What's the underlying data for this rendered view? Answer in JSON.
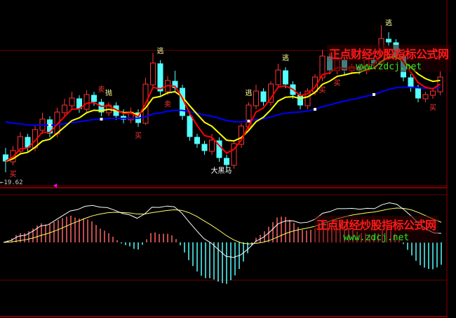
{
  "chart_data": {
    "type": "candlestick",
    "panels": [
      "price",
      "macd"
    ],
    "price": {
      "ohlc": [
        [
          20.1,
          20.3,
          19.6,
          19.92
        ],
        [
          19.9,
          20.35,
          19.8,
          20.22
        ],
        [
          20.2,
          20.75,
          20.1,
          20.62
        ],
        [
          20.6,
          20.7,
          20.2,
          20.32
        ],
        [
          20.3,
          20.95,
          20.2,
          20.82
        ],
        [
          20.8,
          21.3,
          20.7,
          21.12
        ],
        [
          21.1,
          21.2,
          20.6,
          20.72
        ],
        [
          20.7,
          21.45,
          20.6,
          21.32
        ],
        [
          21.3,
          21.7,
          21.2,
          21.52
        ],
        [
          21.5,
          21.9,
          21.4,
          21.72
        ],
        [
          21.7,
          21.8,
          21.3,
          21.42
        ],
        [
          21.4,
          21.95,
          21.3,
          21.82
        ],
        [
          21.8,
          21.9,
          21.5,
          21.62
        ],
        [
          21.6,
          21.7,
          21.2,
          21.32
        ],
        [
          21.3,
          21.6,
          21.2,
          21.52
        ],
        [
          21.5,
          21.6,
          21.1,
          21.22
        ],
        [
          21.2,
          21.4,
          21.0,
          21.12
        ],
        [
          21.1,
          21.45,
          21.0,
          21.32
        ],
        [
          21.3,
          21.4,
          20.9,
          21.02
        ],
        [
          21.0,
          22.3,
          20.95,
          22.12
        ],
        [
          22.1,
          23.0,
          22.0,
          22.72
        ],
        [
          22.7,
          22.8,
          21.8,
          21.92
        ],
        [
          21.9,
          22.35,
          21.8,
          22.22
        ],
        [
          22.2,
          22.5,
          21.9,
          22.02
        ],
        [
          22.0,
          22.1,
          21.1,
          21.22
        ],
        [
          21.2,
          21.3,
          20.5,
          20.62
        ],
        [
          20.6,
          20.7,
          20.3,
          20.42
        ],
        [
          20.4,
          20.5,
          20.1,
          20.22
        ],
        [
          20.2,
          20.7,
          20.1,
          20.52
        ],
        [
          20.5,
          20.6,
          19.9,
          20.02
        ],
        [
          20.0,
          20.1,
          19.62,
          19.82
        ],
        [
          19.8,
          20.5,
          19.7,
          20.42
        ],
        [
          20.4,
          21.0,
          20.3,
          20.92
        ],
        [
          20.9,
          21.6,
          20.8,
          21.52
        ],
        [
          21.5,
          22.1,
          21.4,
          21.92
        ],
        [
          21.9,
          22.0,
          21.5,
          21.62
        ],
        [
          21.6,
          22.2,
          21.5,
          22.12
        ],
        [
          22.1,
          22.7,
          22.0,
          22.52
        ],
        [
          22.5,
          22.6,
          22.0,
          22.12
        ],
        [
          22.1,
          22.2,
          21.7,
          21.82
        ],
        [
          21.8,
          21.9,
          21.4,
          21.52
        ],
        [
          21.5,
          22.0,
          21.4,
          21.92
        ],
        [
          21.9,
          22.4,
          21.8,
          22.32
        ],
        [
          22.3,
          23.1,
          22.2,
          22.92
        ],
        [
          22.9,
          23.0,
          22.4,
          22.52
        ],
        [
          22.5,
          22.9,
          22.4,
          22.82
        ],
        [
          22.8,
          22.9,
          22.4,
          22.52
        ],
        [
          22.5,
          22.7,
          22.4,
          22.62
        ],
        [
          22.6,
          22.7,
          22.4,
          22.52
        ],
        [
          22.5,
          22.9,
          22.4,
          22.82
        ],
        [
          22.8,
          22.9,
          22.6,
          22.72
        ],
        [
          22.7,
          23.8,
          22.6,
          23.42
        ],
        [
          23.4,
          23.6,
          23.2,
          23.32
        ],
        [
          23.3,
          23.4,
          22.8,
          22.92
        ],
        [
          22.9,
          23.0,
          22.2,
          22.32
        ],
        [
          22.3,
          22.4,
          21.9,
          22.02
        ],
        [
          22.0,
          22.1,
          21.6,
          21.72
        ],
        [
          21.7,
          21.9,
          21.6,
          21.82
        ],
        [
          21.8,
          22.0,
          21.7,
          21.92
        ],
        [
          21.9,
          22.5,
          21.8,
          22.32
        ]
      ],
      "low_marker": "19.62",
      "signals": [
        {
          "i": 1,
          "text": "买",
          "pos": "below"
        },
        {
          "i": 13,
          "text": "卖",
          "pos": "above"
        },
        {
          "i": 14,
          "text": "抛",
          "pos": "above"
        },
        {
          "i": 18,
          "text": "买",
          "pos": "below"
        },
        {
          "i": 21,
          "text": "逃",
          "pos": "above"
        },
        {
          "i": 22,
          "text": "卖",
          "pos": "below"
        },
        {
          "i": 29,
          "text": "大黑马",
          "pos": "below"
        },
        {
          "i": 33,
          "text": "逃",
          "pos": "above"
        },
        {
          "i": 38,
          "text": "逃",
          "pos": "above"
        },
        {
          "i": 43,
          "text": "买",
          "pos": "below"
        },
        {
          "i": 45,
          "text": "买",
          "pos": "below"
        },
        {
          "i": 52,
          "text": "逃",
          "pos": "above"
        },
        {
          "i": 58,
          "text": "买",
          "pos": "below"
        }
      ],
      "colors": {
        "up": "#ff3232",
        "down": "#54ffff",
        "ma_fast": "#ff0000",
        "ma_mid": "#ffff00",
        "ma_long": "#0000ff",
        "grid": "#6b0000"
      }
    },
    "macd": {
      "up_color": "#ff6464",
      "down_color": "#54ffff",
      "dif_color": "#ffffff",
      "dea_color": "#ffff66"
    }
  },
  "watermark": {
    "name": "正点财经炒股指标公式网",
    "url": "www.zdcj.net"
  }
}
